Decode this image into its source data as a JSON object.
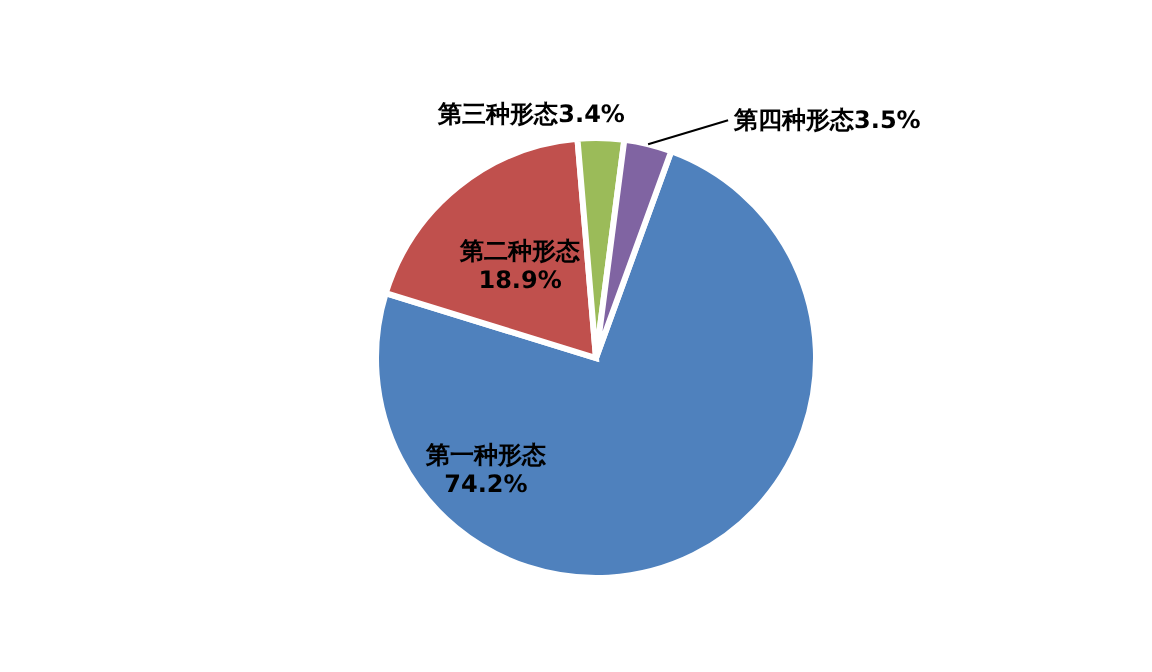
{
  "chart_data": {
    "type": "pie",
    "categories": [
      "第一种形态",
      "第二种形态",
      "第三种形态",
      "第四种形态"
    ],
    "values": [
      74.2,
      18.9,
      3.4,
      3.5
    ],
    "value_labels": [
      "74.2%",
      "18.9%",
      "3.4%",
      "3.5%"
    ],
    "colors": [
      "#4f81bd",
      "#c0504d",
      "#9bbb59",
      "#8064a2"
    ]
  }
}
